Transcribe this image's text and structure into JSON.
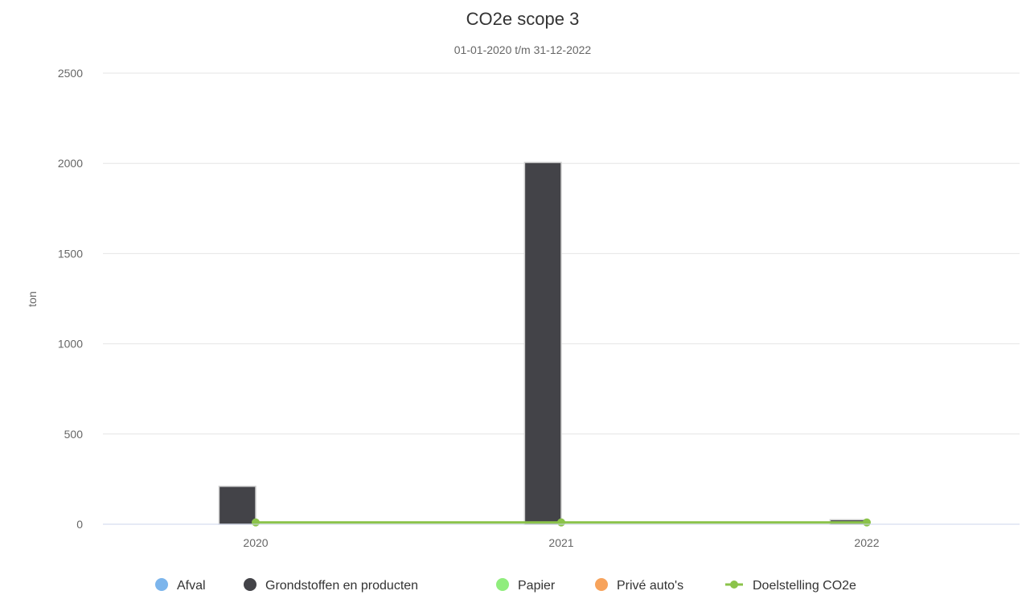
{
  "chart_data": {
    "type": "bar",
    "title": "CO2e scope 3",
    "subtitle": "01-01-2020 t/m 31-12-2022",
    "xlabel": "",
    "ylabel": "ton",
    "categories": [
      "2020",
      "2021",
      "2022"
    ],
    "ylim": [
      0,
      2500
    ],
    "yticks": [
      0,
      500,
      1000,
      1500,
      2000,
      2500
    ],
    "grid": true,
    "legend_position": "bottom",
    "series": [
      {
        "name": "Afval",
        "type": "bar",
        "color": "#7cb5ec",
        "values": [
          0,
          0,
          0
        ]
      },
      {
        "name": "Grondstoffen en producten",
        "type": "bar",
        "color": "#434348",
        "values": [
          210,
          2005,
          25
        ]
      },
      {
        "name": "Papier",
        "type": "bar",
        "color": "#90ed7d",
        "values": [
          0,
          0,
          0
        ]
      },
      {
        "name": "Privé auto's",
        "type": "bar",
        "color": "#f7a35c",
        "values": [
          0,
          0,
          0
        ]
      },
      {
        "name": "Doelstelling CO2e",
        "type": "line",
        "color": "#8bc34a",
        "values": [
          10,
          10,
          10
        ]
      }
    ]
  }
}
